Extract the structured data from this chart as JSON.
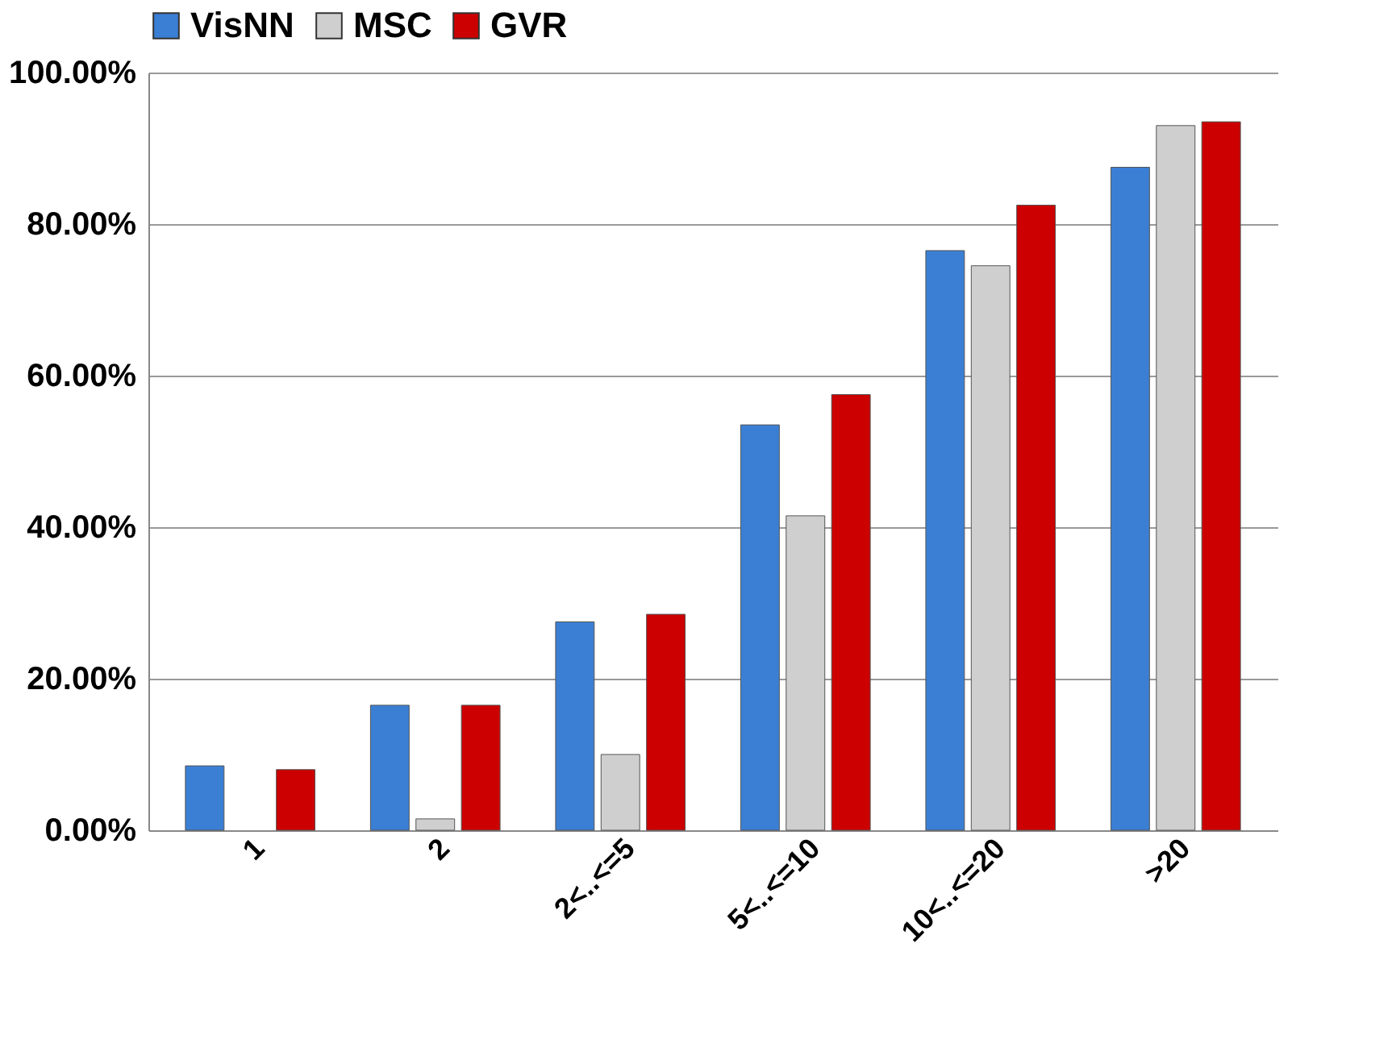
{
  "chart_data": {
    "type": "bar",
    "categories": [
      "1",
      "2",
      "2<..<=5",
      "5<..<=10",
      "10<..<=20",
      ">20"
    ],
    "series": [
      {
        "name": "VisNN",
        "color": "#3b7fd4",
        "values": [
          8.5,
          16.5,
          27.5,
          53.5,
          76.5,
          87.5
        ]
      },
      {
        "name": "MSC",
        "color": "#cfcfcf",
        "values": [
          null,
          1.5,
          10,
          41.5,
          74.5,
          93
        ]
      },
      {
        "name": "GVR",
        "color": "#cc0000",
        "values": [
          8,
          16.5,
          28.5,
          57.5,
          82.5,
          93.5
        ]
      }
    ],
    "ylim": [
      0,
      100
    ],
    "yticks": [
      {
        "value": 0,
        "label": "0.00%"
      },
      {
        "value": 20,
        "label": "20.00%"
      },
      {
        "value": 40,
        "label": "40.00%"
      },
      {
        "value": 60,
        "label": "60.00%"
      },
      {
        "value": 80,
        "label": "80.00%"
      },
      {
        "value": 100,
        "label": "100.00%"
      }
    ],
    "grid": "y",
    "legend": "top"
  }
}
